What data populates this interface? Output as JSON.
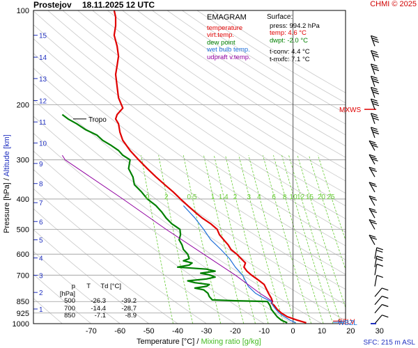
{
  "header": {
    "station": "Prostejov",
    "datetime": "18.11.2025 12 UTC",
    "brand": "CHMI © 2025"
  },
  "legend": {
    "title": "EMAGRAM",
    "items": [
      {
        "label": "temperature",
        "color": "#e00000"
      },
      {
        "label": "virt.temp.",
        "color": "#e00000"
      },
      {
        "label": "dew point",
        "color": "#008000"
      },
      {
        "label": "wet bulb temp.",
        "color": "#1e6fd9"
      },
      {
        "label": "udpraft v.temp.",
        "color": "#9000a0"
      }
    ]
  },
  "surface": {
    "title": "Surface:",
    "press": "press: 994.2 hPa",
    "temp": "temp: 4.6 °C",
    "dwpt": "dwpt: -2.0 °C",
    "tconv": "t-conv: 4.4 °C",
    "tmxfc": "t-mxfc: 7.1 °C"
  },
  "table": {
    "headers": [
      "p [hPa]",
      "T",
      "Td [°C]"
    ],
    "rows": [
      [
        "500",
        "-26.3",
        "-39.2"
      ],
      [
        "700",
        "-14.4",
        "-28.7"
      ],
      [
        "850",
        "-7.1",
        "-8.9"
      ]
    ]
  },
  "axes": {
    "ylabel_a": "Pressure [hPa]",
    "ylabel_sep": "/",
    "ylabel_b": "Altitude [km]",
    "xlabel_a": "Temperature [°C]",
    "xlabel_sep": "/",
    "xlabel_b": "Mixing ratio [g/kg]",
    "sfc_note": "SFC: 215 m ASL"
  },
  "colors": {
    "temperature": "#e00000",
    "dewpoint": "#008000",
    "wetbulb": "#1e6fd9",
    "updraft": "#9000a0",
    "mixing": "#66cc33",
    "altitude": "#2030c0",
    "brand": "#d00000"
  },
  "chart_data": {
    "type": "line",
    "title": "EMAGRAM",
    "xlabel": "Temperature [°C]",
    "ylabel": "Pressure [hPa]",
    "xlim": [
      -80,
      30
    ],
    "ylim": [
      1000,
      100
    ],
    "yscale": "log",
    "pressure_ticks": [
      100,
      200,
      300,
      400,
      500,
      600,
      700,
      850,
      925,
      1000
    ],
    "temperature_ticks": [
      -70,
      -60,
      -50,
      -40,
      -30,
      -20,
      -10,
      0,
      10,
      20,
      30
    ],
    "altitude_ticks_km": [
      1,
      2,
      3,
      4,
      5,
      6,
      7,
      8,
      9,
      10,
      11,
      12,
      13,
      14,
      15
    ],
    "altitude_tick_pressures": [
      898,
      795,
      701,
      617,
      540,
      472,
      411,
      357,
      308,
      265,
      227,
      194,
      165,
      141,
      120
    ],
    "mixing_ratio_labels": [
      "0.",
      "2",
      "0.5",
      "1",
      "1.4",
      "2",
      "3",
      "4",
      "6",
      "8",
      "10",
      "12",
      "15",
      "20",
      "25"
    ],
    "mixing_ratio_values": [
      0.1,
      0.2,
      0.5,
      1,
      1.4,
      2,
      3,
      4,
      6,
      8,
      10,
      12,
      15,
      20,
      25
    ],
    "annotations": [
      {
        "text": "Tropo",
        "p": 222,
        "t": -59
      },
      {
        "text": "MXWS",
        "p": 207
      },
      {
        "text": "EZLV",
        "p": 981
      },
      {
        "text": "WBZL",
        "p": 990
      }
    ],
    "series": [
      {
        "name": "temperature",
        "points": [
          [
            994,
            4.6
          ],
          [
            975,
            1.5
          ],
          [
            950,
            -2.0
          ],
          [
            925,
            -4.0
          ],
          [
            900,
            -5.5
          ],
          [
            875,
            -6.5
          ],
          [
            860,
            -7.5
          ],
          [
            850,
            -7.1
          ],
          [
            830,
            -7.5
          ],
          [
            800,
            -8.5
          ],
          [
            750,
            -10.0
          ],
          [
            720,
            -12.5
          ],
          [
            700,
            -14.4
          ],
          [
            680,
            -16.0
          ],
          [
            660,
            -17.0
          ],
          [
            640,
            -16.5
          ],
          [
            620,
            -18.0
          ],
          [
            600,
            -19.5
          ],
          [
            580,
            -21.5
          ],
          [
            560,
            -22.5
          ],
          [
            540,
            -24.0
          ],
          [
            520,
            -25.5
          ],
          [
            500,
            -26.3
          ],
          [
            480,
            -28.5
          ],
          [
            460,
            -31.5
          ],
          [
            440,
            -34.0
          ],
          [
            420,
            -36.5
          ],
          [
            400,
            -39.0
          ],
          [
            380,
            -41.5
          ],
          [
            360,
            -44.5
          ],
          [
            340,
            -47.5
          ],
          [
            320,
            -50.5
          ],
          [
            300,
            -53.5
          ],
          [
            280,
            -56.5
          ],
          [
            260,
            -59.0
          ],
          [
            245,
            -60.0
          ],
          [
            230,
            -60.5
          ],
          [
            222,
            -61.5
          ],
          [
            215,
            -61.0
          ],
          [
            205,
            -59.0
          ],
          [
            190,
            -60.5
          ],
          [
            175,
            -61.0
          ],
          [
            160,
            -61.5
          ],
          [
            150,
            -61.0
          ],
          [
            140,
            -60.5
          ],
          [
            130,
            -61.0
          ],
          [
            120,
            -62.0
          ],
          [
            112,
            -61.5
          ],
          [
            105,
            -61.5
          ],
          [
            100,
            -62.0
          ]
        ]
      },
      {
        "name": "dew point",
        "points": [
          [
            994,
            -2.0
          ],
          [
            975,
            -4.0
          ],
          [
            950,
            -5.5
          ],
          [
            925,
            -6.5
          ],
          [
            900,
            -7.5
          ],
          [
            875,
            -8.0
          ],
          [
            860,
            -8.5
          ],
          [
            850,
            -8.9
          ],
          [
            845,
            -20.0
          ],
          [
            840,
            -28.0
          ],
          [
            820,
            -29.0
          ],
          [
            800,
            -29.5
          ],
          [
            780,
            -31.0
          ],
          [
            770,
            -34.0
          ],
          [
            760,
            -30.0
          ],
          [
            750,
            -29.0
          ],
          [
            740,
            -34.0
          ],
          [
            730,
            -36.5
          ],
          [
            720,
            -30.0
          ],
          [
            710,
            -27.0
          ],
          [
            700,
            -28.7
          ],
          [
            690,
            -32.0
          ],
          [
            680,
            -27.0
          ],
          [
            670,
            -30.0
          ],
          [
            660,
            -40.0
          ],
          [
            650,
            -36.0
          ],
          [
            640,
            -35.0
          ],
          [
            630,
            -38.0
          ],
          [
            620,
            -36.0
          ],
          [
            600,
            -36.5
          ],
          [
            580,
            -38.0
          ],
          [
            560,
            -38.5
          ],
          [
            540,
            -39.5
          ],
          [
            520,
            -39.0
          ],
          [
            500,
            -39.2
          ],
          [
            480,
            -42.0
          ],
          [
            460,
            -44.0
          ],
          [
            440,
            -45.5
          ],
          [
            420,
            -47.5
          ],
          [
            400,
            -50.5
          ],
          [
            380,
            -52.5
          ],
          [
            360,
            -55.0
          ],
          [
            340,
            -55.5
          ],
          [
            320,
            -57.0
          ],
          [
            300,
            -56.5
          ],
          [
            290,
            -59.0
          ],
          [
            280,
            -60.5
          ],
          [
            270,
            -63.0
          ],
          [
            260,
            -66.0
          ],
          [
            250,
            -68.0
          ],
          [
            240,
            -72.0
          ],
          [
            230,
            -75.0
          ],
          [
            222,
            -78.0
          ],
          [
            215,
            -80.0
          ]
        ]
      },
      {
        "name": "wet bulb temp.",
        "points": [
          [
            994,
            1.0
          ],
          [
            975,
            -1.0
          ],
          [
            950,
            -3.0
          ],
          [
            925,
            -4.8
          ],
          [
            900,
            -6.0
          ],
          [
            875,
            -7.0
          ],
          [
            850,
            -7.6
          ],
          [
            820,
            -11.0
          ],
          [
            800,
            -13.0
          ],
          [
            760,
            -15.5
          ],
          [
            720,
            -16.8
          ],
          [
            700,
            -17.5
          ],
          [
            660,
            -20.0
          ],
          [
            620,
            -22.0
          ],
          [
            580,
            -25.0
          ],
          [
            540,
            -28.5
          ],
          [
            500,
            -31.0
          ],
          [
            460,
            -34.0
          ],
          [
            420,
            -38.0
          ]
        ]
      },
      {
        "name": "udpraft v.temp.",
        "points": [
          [
            850,
            -7.0
          ],
          [
            800,
            -11.5
          ],
          [
            700,
            -20.0
          ],
          [
            600,
            -31.0
          ],
          [
            500,
            -44.0
          ],
          [
            400,
            -59.0
          ],
          [
            300,
            -79.0
          ],
          [
            290,
            -80.0
          ]
        ]
      }
    ],
    "wind_barbs_pressures": [
      130,
      145,
      160,
      175,
      190,
      207,
      230,
      255,
      280,
      310,
      340,
      380,
      420,
      460,
      500,
      560,
      620,
      660,
      700,
      760,
      820,
      870,
      925,
      1000
    ]
  }
}
